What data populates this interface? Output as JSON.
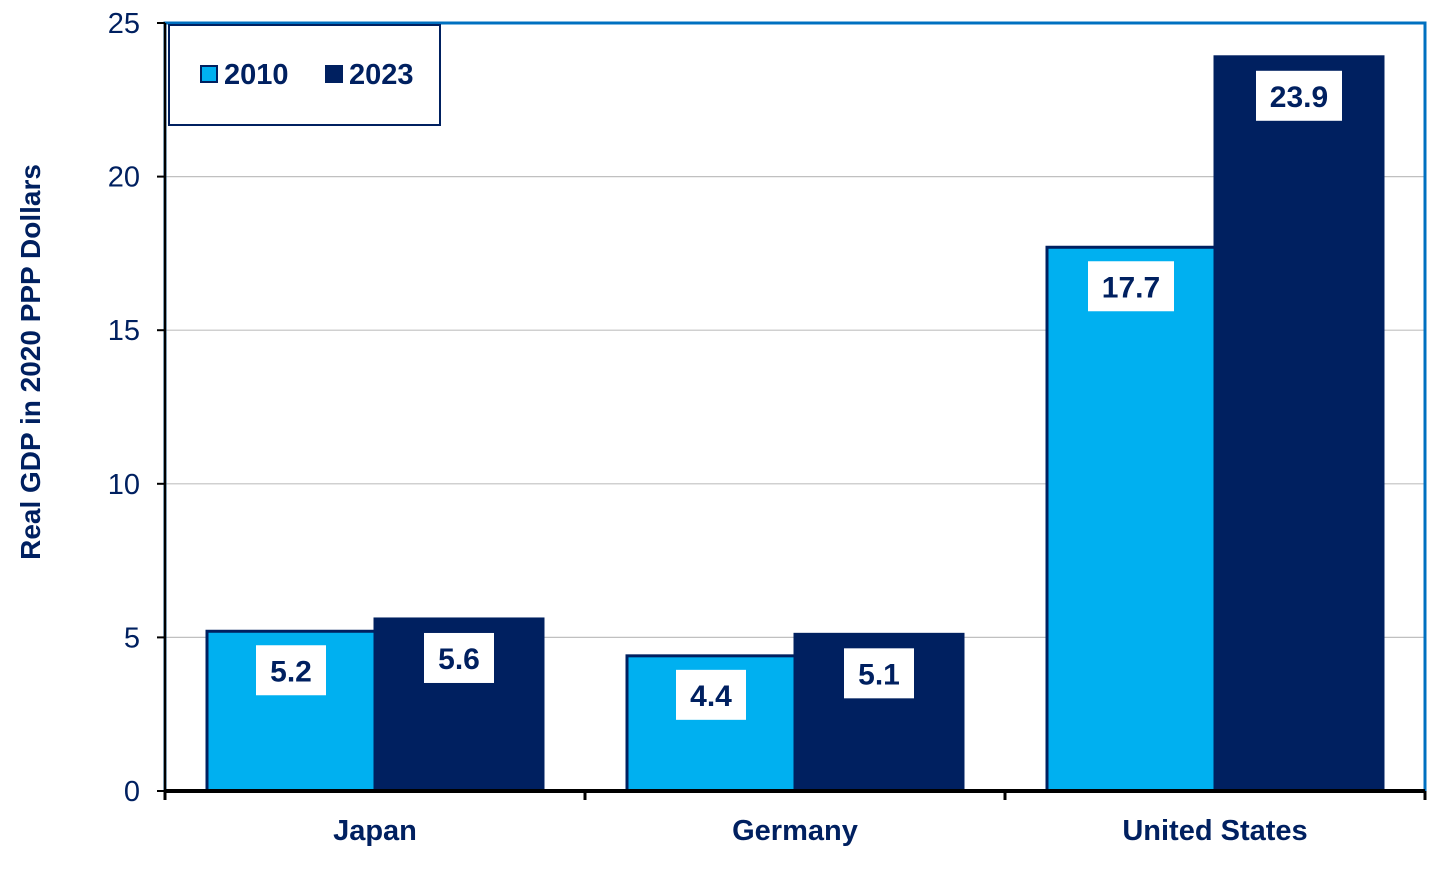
{
  "chart_data": {
    "type": "bar",
    "categories": [
      "Japan",
      "Germany",
      "United States"
    ],
    "series": [
      {
        "name": "2010",
        "values": [
          5.2,
          4.4,
          17.7
        ],
        "color": "#00B0F0"
      },
      {
        "name": "2023",
        "values": [
          5.6,
          5.1,
          23.9
        ],
        "color": "#002060"
      }
    ],
    "value_labels": [
      [
        "5.2",
        "4.4",
        "17.7"
      ],
      [
        "5.6",
        "5.1",
        "23.9"
      ]
    ],
    "ylabel": "Real GDP in 2020 PPP Dollars",
    "xlabel": "",
    "ylim": [
      0,
      25
    ],
    "yticks": [
      0,
      5,
      10,
      15,
      20,
      25
    ],
    "ytick_labels": [
      "0",
      "5",
      "10",
      "15",
      "20",
      "25"
    ],
    "grid": true,
    "legend_position": "top-left",
    "data_labels": true,
    "colors": {
      "plot_border": "#0070C0",
      "text": "#002060",
      "grid": "#C0C0C0",
      "axis": "#000000"
    }
  }
}
